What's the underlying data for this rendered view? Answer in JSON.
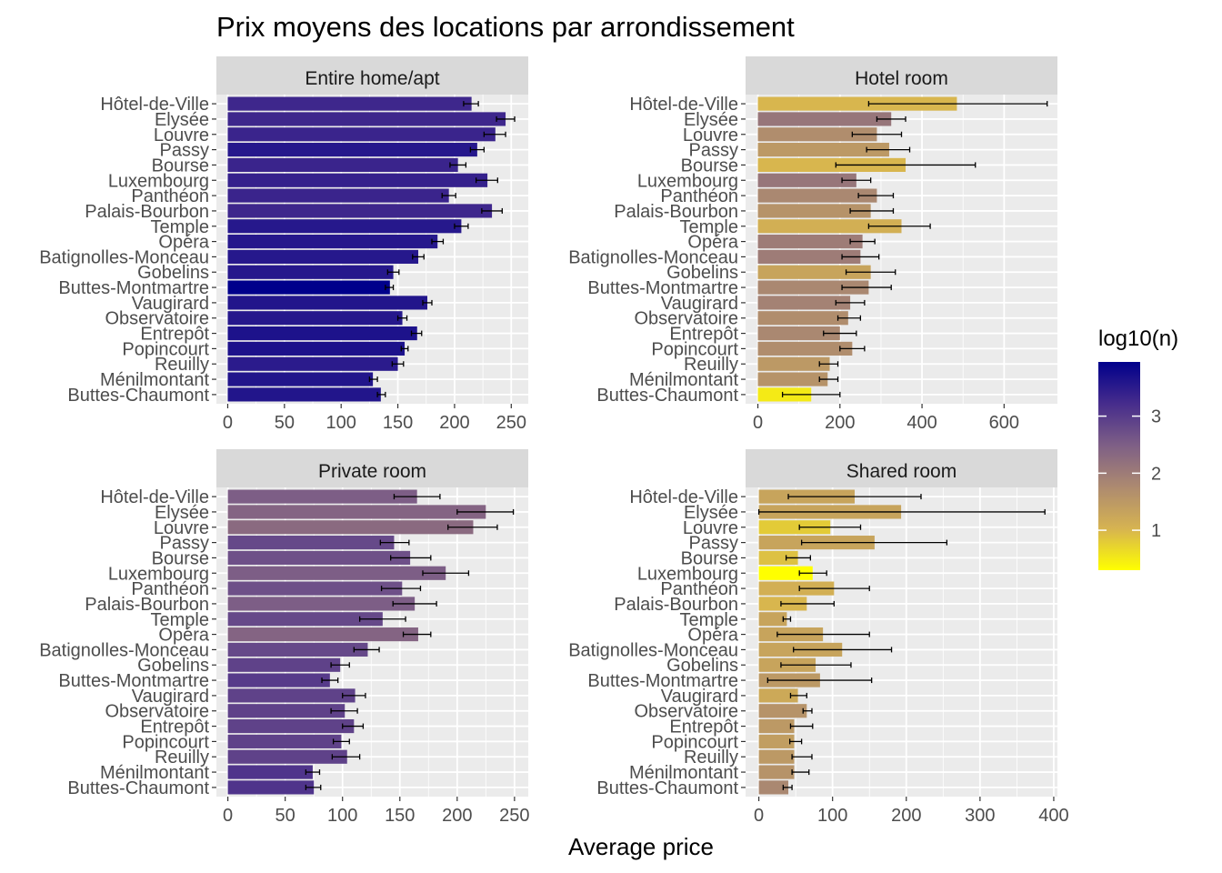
{
  "chart_data": {
    "type": "bar",
    "orientation": "horizontal",
    "title": "Prix moyens des locations par arrondissement",
    "xlabel": "Average price",
    "ylabel": "",
    "categories": [
      "Hôtel-de-Ville",
      "Elysée",
      "Louvre",
      "Passy",
      "Bourse",
      "Luxembourg",
      "Panthéon",
      "Palais-Bourbon",
      "Temple",
      "Opéra",
      "Batignolles-Monceau",
      "Gobelins",
      "Buttes-Montmartre",
      "Vaugirard",
      "Observatoire",
      "Entrepôt",
      "Popincourt",
      "Reuilly",
      "Ménilmontant",
      "Buttes-Chaumont"
    ],
    "legend": {
      "title": "log10(n)",
      "position": "right",
      "breaks": [
        1,
        2,
        3
      ],
      "break_labels": [
        "1",
        "2",
        "3"
      ],
      "range": [
        0.3,
        3.95
      ],
      "colors": [
        "#ffff00",
        "#d6b351",
        "#ad8a70",
        "#7e5f86",
        "#462c8c",
        "#00008b"
      ]
    },
    "grid": true,
    "panels": [
      {
        "strip": "Entire home/apt",
        "xlim": [
          -10,
          265
        ],
        "xticks": [
          0,
          50,
          100,
          150,
          200,
          250
        ],
        "values": [
          215,
          245,
          236,
          220,
          203,
          229,
          195,
          233,
          206,
          185,
          168,
          146,
          143,
          176,
          154,
          167,
          156,
          150,
          128,
          135
        ],
        "err_low": [
          208,
          237,
          226,
          214,
          196,
          219,
          189,
          224,
          200,
          180,
          163,
          141,
          139,
          172,
          150,
          162,
          153,
          145,
          125,
          132
        ],
        "err_high": [
          221,
          253,
          245,
          226,
          210,
          238,
          201,
          242,
          212,
          190,
          173,
          151,
          146,
          180,
          158,
          171,
          159,
          155,
          132,
          139
        ],
        "log10n": [
          3.3,
          3.3,
          3.35,
          3.55,
          3.35,
          3.4,
          3.35,
          3.3,
          3.55,
          3.55,
          3.55,
          3.55,
          3.95,
          3.6,
          3.55,
          3.65,
          3.65,
          3.5,
          3.6,
          3.6
        ]
      },
      {
        "strip": "Hotel room",
        "xlim": [
          -30,
          730
        ],
        "xticks": [
          0,
          200,
          400,
          600
        ],
        "values": [
          485,
          325,
          290,
          320,
          360,
          240,
          290,
          275,
          350,
          255,
          250,
          275,
          270,
          225,
          220,
          200,
          230,
          175,
          170,
          130
        ],
        "err_low": [
          270,
          290,
          230,
          265,
          190,
          205,
          245,
          225,
          270,
          225,
          205,
          215,
          205,
          190,
          195,
          160,
          200,
          150,
          150,
          60
        ],
        "err_high": [
          705,
          360,
          350,
          370,
          530,
          275,
          330,
          330,
          420,
          285,
          295,
          335,
          325,
          260,
          250,
          240,
          260,
          195,
          195,
          200
        ],
        "log10n": [
          1.0,
          2.1,
          1.7,
          1.5,
          1.0,
          2.1,
          1.8,
          1.6,
          1.1,
          2.0,
          2.0,
          1.3,
          1.8,
          1.9,
          1.7,
          1.8,
          1.7,
          1.5,
          1.6,
          0.5
        ]
      },
      {
        "strip": "Private room",
        "xlim": [
          -10,
          262
        ],
        "xticks": [
          0,
          50,
          100,
          150,
          200,
          250
        ],
        "values": [
          165,
          225,
          214,
          145,
          159,
          190,
          152,
          163,
          135,
          166,
          122,
          98,
          89,
          111,
          102,
          110,
          99,
          104,
          74,
          75
        ],
        "err_low": [
          145,
          200,
          192,
          133,
          142,
          170,
          134,
          144,
          115,
          153,
          110,
          90,
          82,
          100,
          90,
          100,
          92,
          91,
          68,
          68
        ],
        "err_high": [
          185,
          249,
          235,
          158,
          177,
          210,
          168,
          182,
          155,
          177,
          132,
          106,
          96,
          120,
          113,
          118,
          106,
          115,
          80,
          81
        ],
        "log10n": [
          2.5,
          2.4,
          2.3,
          2.8,
          2.7,
          2.5,
          2.7,
          2.5,
          2.8,
          2.4,
          2.8,
          2.9,
          3.0,
          2.9,
          2.9,
          2.9,
          2.9,
          2.9,
          3.1,
          3.1
        ]
      },
      {
        "strip": "Shared room",
        "xlim": [
          -18,
          405
        ],
        "xticks": [
          0,
          100,
          200,
          300,
          400
        ],
        "values": [
          130,
          193,
          97,
          157,
          53,
          73,
          102,
          65,
          38,
          87,
          113,
          77,
          83,
          53,
          65,
          48,
          48,
          48,
          48,
          40
        ],
        "err_low": [
          40,
          0,
          55,
          58,
          37,
          55,
          55,
          30,
          33,
          25,
          47,
          30,
          12,
          43,
          60,
          43,
          42,
          45,
          45,
          33
        ],
        "err_high": [
          220,
          388,
          138,
          255,
          70,
          92,
          150,
          102,
          43,
          150,
          180,
          125,
          153,
          65,
          72,
          73,
          58,
          72,
          68,
          45
        ],
        "log10n": [
          1.3,
          1.3,
          0.8,
          1.3,
          0.9,
          0.3,
          1.1,
          1.0,
          1.3,
          1.3,
          1.3,
          1.3,
          1.5,
          1.2,
          1.6,
          1.5,
          1.4,
          1.5,
          1.6,
          1.8
        ]
      }
    ]
  }
}
